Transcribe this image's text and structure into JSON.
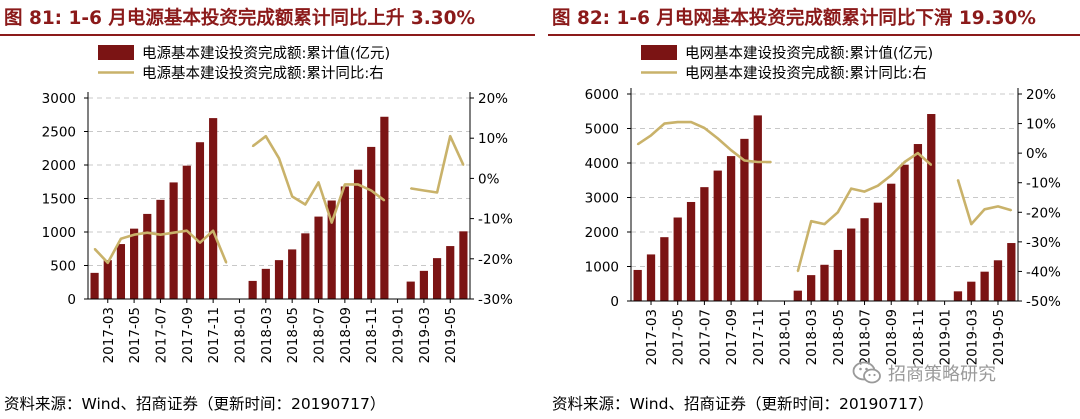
{
  "colors": {
    "bar": "#7b1414",
    "line": "#c9b26a",
    "title": "#8b1a1a",
    "grid": "#c8c8c8"
  },
  "watermark": {
    "text": "招商策略研究",
    "icon": "wechat-icon"
  },
  "x_tick_labels": [
    "2017-03",
    "2017-05",
    "2017-07",
    "2017-09",
    "2017-11",
    "2018-01",
    "2018-03",
    "2018-05",
    "2018-07",
    "2018-09",
    "2018-11",
    "2019-01",
    "2019-03",
    "2019-05"
  ],
  "charts": [
    {
      "title": "图 81:  1-6 月电源基本投资完成额累计同比上升 3.30%",
      "source": "资料来源：Wind、招商证券（更新时间：20190717）",
      "legend": {
        "bar_label": "电源基本建设投资完成额:累计值(亿元)",
        "line_label": "电源基本建设投资完成额:累计同比:右"
      },
      "left_ticks": [
        "0",
        "500",
        "1000",
        "1500",
        "2000",
        "2500",
        "3000"
      ],
      "right_ticks": [
        "-30%",
        "-20%",
        "-10%",
        "0%",
        "10%",
        "20%"
      ]
    },
    {
      "title": "图 82: 1-6 月电网基本投资完成额累计同比下滑 19.30%",
      "source": "资料来源：Wind、招商证券（更新时间：20190717）",
      "legend": {
        "bar_label": "电网基本建设投资完成额:累计值(亿元)",
        "line_label": "电网基本建设投资完成额:累计同比:右"
      },
      "left_ticks": [
        "0",
        "1000",
        "2000",
        "3000",
        "4000",
        "5000",
        "6000"
      ],
      "right_ticks": [
        "-50%",
        "-40%",
        "-30%",
        "-20%",
        "-10%",
        "0%",
        "10%",
        "20%"
      ]
    }
  ],
  "chart_data": [
    {
      "type": "bar",
      "title": "图 81:  1-6 月电源基本投资完成额累计同比上升 3.30%",
      "x": [
        "2017-02",
        "2017-03",
        "2017-04",
        "2017-05",
        "2017-06",
        "2017-07",
        "2017-08",
        "2017-09",
        "2017-10",
        "2017-11",
        "2017-12",
        "2018-01",
        "2018-02",
        "2018-03",
        "2018-04",
        "2018-05",
        "2018-06",
        "2018-07",
        "2018-08",
        "2018-09",
        "2018-10",
        "2018-11",
        "2018-12",
        "2019-01",
        "2019-02",
        "2019-03",
        "2019-04",
        "2019-05",
        "2019-06"
      ],
      "series": [
        {
          "name": "电源基本建设投资完成额:累计值(亿元)",
          "type": "bar",
          "axis": "left",
          "values": [
            390,
            580,
            820,
            1050,
            1270,
            1480,
            1740,
            1990,
            2340,
            2700,
            null,
            null,
            270,
            450,
            580,
            740,
            980,
            1230,
            1470,
            1680,
            1930,
            2270,
            2720,
            null,
            260,
            420,
            610,
            790,
            1010
          ]
        },
        {
          "name": "电源基本建设投资完成额:累计同比:右",
          "type": "line",
          "axis": "right",
          "values": [
            -17.5,
            -21,
            -15,
            -14,
            -13.5,
            -14,
            -13.5,
            -13,
            -16,
            -13,
            -21,
            null,
            8,
            10.5,
            5,
            -4.5,
            -6.5,
            -1,
            -11,
            -1.5,
            -1.5,
            -3,
            -5.5,
            null,
            -2.5,
            -3,
            -3.5,
            10.5,
            3.3
          ]
        }
      ],
      "ylim": [
        0,
        3000
      ],
      "y2lim": [
        -30,
        20
      ],
      "y2unit": "%",
      "grid": true,
      "legend_position": "top"
    },
    {
      "type": "bar",
      "title": "图 82: 1-6 月电网基本投资完成额累计同比下滑 19.30%",
      "x": [
        "2017-02",
        "2017-03",
        "2017-04",
        "2017-05",
        "2017-06",
        "2017-07",
        "2017-08",
        "2017-09",
        "2017-10",
        "2017-11",
        "2017-12",
        "2018-01",
        "2018-02",
        "2018-03",
        "2018-04",
        "2018-05",
        "2018-06",
        "2018-07",
        "2018-08",
        "2018-09",
        "2018-10",
        "2018-11",
        "2018-12",
        "2019-01",
        "2019-02",
        "2019-03",
        "2019-04",
        "2019-05",
        "2019-06"
      ],
      "series": [
        {
          "name": "电网基本建设投资完成额:累计值(亿元)",
          "type": "bar",
          "axis": "left",
          "values": [
            900,
            1350,
            1850,
            2420,
            2870,
            3300,
            3780,
            4200,
            4700,
            5380,
            null,
            null,
            300,
            750,
            1050,
            1480,
            2100,
            2400,
            2850,
            3400,
            3950,
            4550,
            5420,
            null,
            280,
            560,
            850,
            1180,
            1680
          ]
        },
        {
          "name": "电网基本建设投资完成额:累计同比:右",
          "type": "line",
          "axis": "right",
          "values": [
            3,
            6,
            10,
            10.5,
            10.5,
            8.5,
            5,
            1,
            -2.5,
            -3,
            -3,
            null,
            -40,
            -23,
            -24,
            -20,
            -12,
            -13,
            -11,
            -7.5,
            -3,
            0,
            -4,
            null,
            -9,
            -24,
            -19,
            -18,
            -19.3
          ]
        }
      ],
      "ylim": [
        0,
        6000
      ],
      "y2lim": [
        -50,
        20
      ],
      "y2unit": "%",
      "grid": true,
      "legend_position": "top"
    }
  ]
}
